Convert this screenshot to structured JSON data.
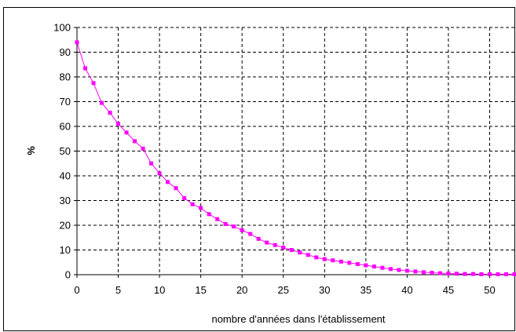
{
  "caption": "",
  "chart_data": {
    "type": "line",
    "title": "",
    "xlabel": "nombre d'années dans l'établissement",
    "ylabel": "%",
    "xlim": [
      0,
      53
    ],
    "ylim": [
      0,
      100
    ],
    "x_ticks": [
      0,
      5,
      10,
      15,
      20,
      25,
      30,
      35,
      40,
      45,
      50
    ],
    "y_ticks": [
      0,
      10,
      20,
      30,
      40,
      50,
      60,
      70,
      80,
      90,
      100
    ],
    "grid": true,
    "legend": "none",
    "series": [
      {
        "color": "#ff00ff",
        "x": [
          0,
          1,
          2,
          3,
          4,
          5,
          6,
          7,
          8,
          9,
          10,
          11,
          12,
          13,
          14,
          15,
          16,
          17,
          18,
          19,
          20,
          21,
          22,
          23,
          24,
          25,
          26,
          27,
          28,
          29,
          30,
          31,
          32,
          33,
          34,
          35,
          36,
          37,
          38,
          39,
          40,
          41,
          42,
          43,
          44,
          45,
          46,
          47,
          48,
          49,
          50,
          51,
          52,
          53
        ],
        "y": [
          94,
          83.5,
          77.5,
          69.5,
          65.5,
          61,
          57.5,
          54,
          51,
          45,
          41,
          37.5,
          35,
          31,
          28.5,
          27,
          24.5,
          22.5,
          20.5,
          19.5,
          18,
          16.5,
          14.5,
          13,
          12,
          11,
          10,
          9,
          8,
          7,
          6.3,
          5.8,
          5.3,
          4.8,
          4.3,
          3.8,
          3.3,
          2.8,
          2.3,
          1.9,
          1.6,
          1.3,
          1.0,
          0.8,
          0.6,
          0.5,
          0.4,
          0.3,
          0.3,
          0.2,
          0.2,
          0.2,
          0.2,
          0.2
        ]
      }
    ]
  }
}
